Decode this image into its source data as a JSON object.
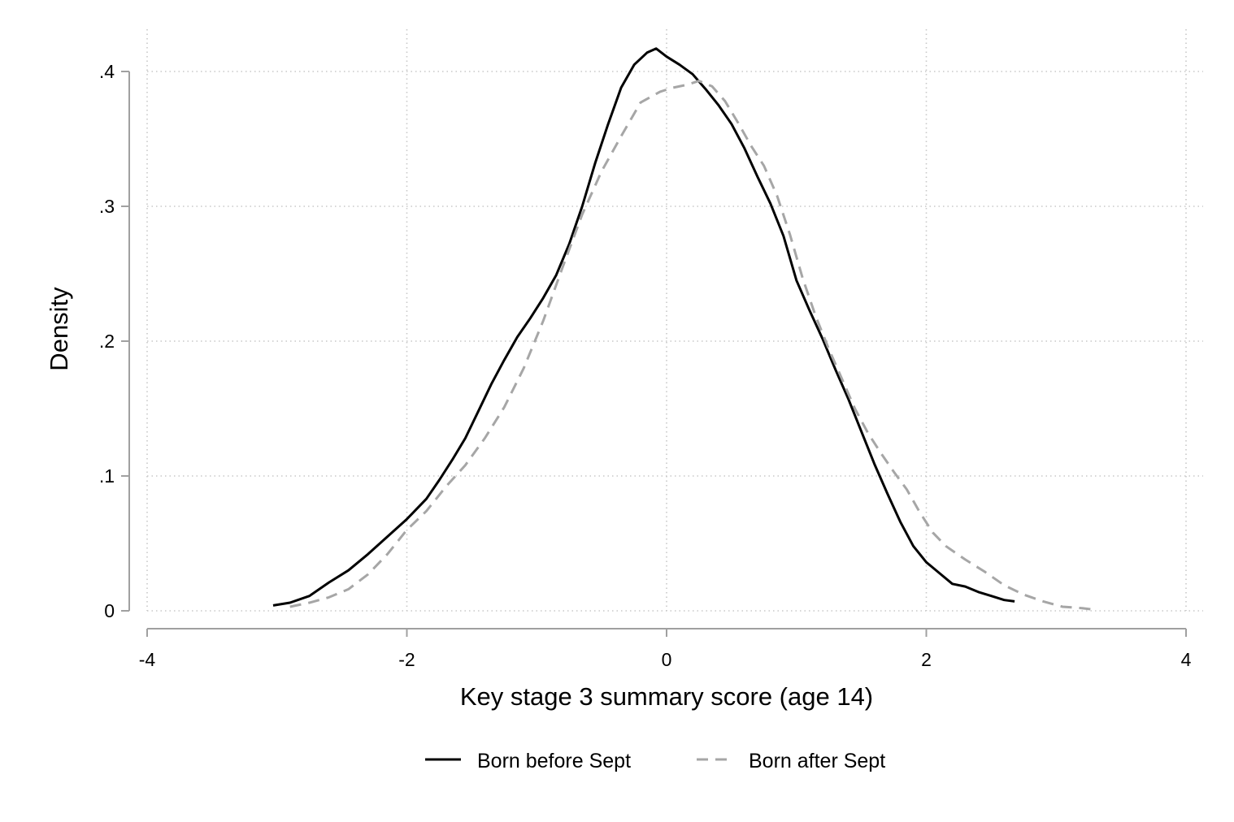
{
  "chart_data": {
    "type": "line",
    "title": "",
    "xlabel": "Key stage 3 summary score (age 14)",
    "ylabel": "Density",
    "xlim": [
      -4,
      4
    ],
    "ylim": [
      0,
      0.4
    ],
    "x_ticks": [
      -4,
      -2,
      0,
      2,
      4
    ],
    "x_tick_labels": [
      "-4",
      "-2",
      "0",
      "2",
      "4"
    ],
    "y_ticks": [
      0,
      0.1,
      0.2,
      0.3,
      0.4
    ],
    "y_tick_labels": [
      "0",
      ".1",
      ".2",
      ".3",
      ".4"
    ],
    "grid": true,
    "legend_position": "bottom",
    "series": [
      {
        "name": "Born before Sept",
        "color": "#000000",
        "style": "solid",
        "points": [
          [
            -3.03,
            0.004
          ],
          [
            -2.9,
            0.006
          ],
          [
            -2.75,
            0.011
          ],
          [
            -2.6,
            0.021
          ],
          [
            -2.45,
            0.03
          ],
          [
            -2.3,
            0.042
          ],
          [
            -2.15,
            0.055
          ],
          [
            -2.0,
            0.068
          ],
          [
            -1.85,
            0.083
          ],
          [
            -1.75,
            0.097
          ],
          [
            -1.65,
            0.112
          ],
          [
            -1.55,
            0.128
          ],
          [
            -1.45,
            0.148
          ],
          [
            -1.35,
            0.168
          ],
          [
            -1.25,
            0.186
          ],
          [
            -1.15,
            0.203
          ],
          [
            -1.05,
            0.217
          ],
          [
            -0.95,
            0.232
          ],
          [
            -0.85,
            0.249
          ],
          [
            -0.75,
            0.272
          ],
          [
            -0.65,
            0.3
          ],
          [
            -0.55,
            0.332
          ],
          [
            -0.45,
            0.361
          ],
          [
            -0.35,
            0.388
          ],
          [
            -0.25,
            0.405
          ],
          [
            -0.15,
            0.414
          ],
          [
            -0.08,
            0.417
          ],
          [
            0.0,
            0.411
          ],
          [
            0.1,
            0.405
          ],
          [
            0.2,
            0.398
          ],
          [
            0.3,
            0.387
          ],
          [
            0.4,
            0.375
          ],
          [
            0.5,
            0.361
          ],
          [
            0.6,
            0.343
          ],
          [
            0.7,
            0.322
          ],
          [
            0.8,
            0.302
          ],
          [
            0.9,
            0.278
          ],
          [
            1.0,
            0.245
          ],
          [
            1.1,
            0.223
          ],
          [
            1.2,
            0.202
          ],
          [
            1.3,
            0.179
          ],
          [
            1.4,
            0.157
          ],
          [
            1.5,
            0.133
          ],
          [
            1.6,
            0.109
          ],
          [
            1.7,
            0.087
          ],
          [
            1.8,
            0.066
          ],
          [
            1.9,
            0.048
          ],
          [
            2.0,
            0.036
          ],
          [
            2.1,
            0.028
          ],
          [
            2.2,
            0.02
          ],
          [
            2.3,
            0.018
          ],
          [
            2.4,
            0.014
          ],
          [
            2.5,
            0.011
          ],
          [
            2.6,
            0.008
          ],
          [
            2.68,
            0.007
          ]
        ]
      },
      {
        "name": "Born after Sept",
        "color": "#a6a6a6",
        "style": "dashed",
        "points": [
          [
            -2.9,
            0.003
          ],
          [
            -2.75,
            0.006
          ],
          [
            -2.6,
            0.01
          ],
          [
            -2.45,
            0.016
          ],
          [
            -2.3,
            0.027
          ],
          [
            -2.15,
            0.042
          ],
          [
            -2.0,
            0.06
          ],
          [
            -1.85,
            0.074
          ],
          [
            -1.7,
            0.092
          ],
          [
            -1.55,
            0.108
          ],
          [
            -1.4,
            0.128
          ],
          [
            -1.25,
            0.151
          ],
          [
            -1.1,
            0.18
          ],
          [
            -0.95,
            0.215
          ],
          [
            -0.8,
            0.255
          ],
          [
            -0.65,
            0.294
          ],
          [
            -0.5,
            0.326
          ],
          [
            -0.35,
            0.352
          ],
          [
            -0.2,
            0.377
          ],
          [
            -0.05,
            0.385
          ],
          [
            0.05,
            0.388
          ],
          [
            0.15,
            0.39
          ],
          [
            0.25,
            0.393
          ],
          [
            0.35,
            0.389
          ],
          [
            0.45,
            0.378
          ],
          [
            0.55,
            0.362
          ],
          [
            0.65,
            0.345
          ],
          [
            0.75,
            0.33
          ],
          [
            0.85,
            0.308
          ],
          [
            0.95,
            0.279
          ],
          [
            1.05,
            0.246
          ],
          [
            1.15,
            0.218
          ],
          [
            1.25,
            0.194
          ],
          [
            1.35,
            0.172
          ],
          [
            1.45,
            0.15
          ],
          [
            1.55,
            0.132
          ],
          [
            1.65,
            0.117
          ],
          [
            1.75,
            0.103
          ],
          [
            1.85,
            0.09
          ],
          [
            1.95,
            0.073
          ],
          [
            2.05,
            0.058
          ],
          [
            2.15,
            0.048
          ],
          [
            2.3,
            0.038
          ],
          [
            2.45,
            0.029
          ],
          [
            2.6,
            0.019
          ],
          [
            2.75,
            0.012
          ],
          [
            2.9,
            0.007
          ],
          [
            3.05,
            0.003
          ],
          [
            3.2,
            0.002
          ],
          [
            3.28,
            0.001
          ]
        ]
      }
    ]
  }
}
